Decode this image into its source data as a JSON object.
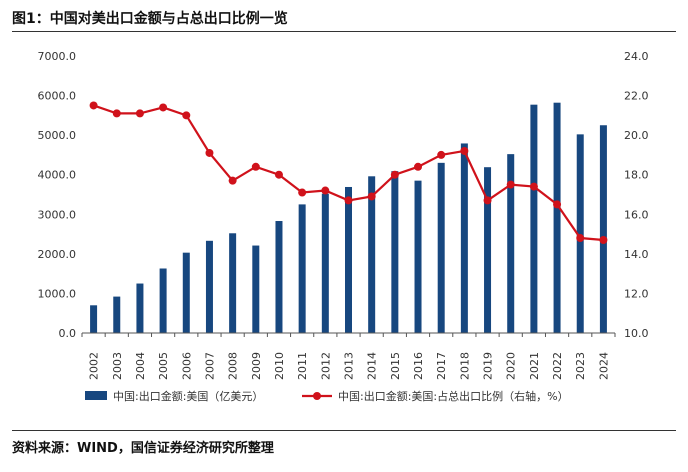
{
  "title": "图1：中国对美出口金额与占总出口比例一览",
  "source": "资料来源：WIND，国信证券经济研究所整理",
  "chart_data": {
    "type": "bar+line",
    "categories": [
      "2002",
      "2003",
      "2004",
      "2005",
      "2006",
      "2007",
      "2008",
      "2009",
      "2010",
      "2011",
      "2012",
      "2013",
      "2014",
      "2015",
      "2016",
      "2017",
      "2018",
      "2019",
      "2020",
      "2021",
      "2022",
      "2023",
      "2024"
    ],
    "series": [
      {
        "name": "中国:出口金额:美国（亿美元）",
        "type": "bar",
        "axis": "left",
        "color": "#17477f",
        "values": [
          700,
          920,
          1250,
          1630,
          2030,
          2330,
          2520,
          2210,
          2830,
          3250,
          3520,
          3690,
          3960,
          4090,
          3850,
          4300,
          4790,
          4190,
          4520,
          5770,
          5820,
          5020,
          5250
        ]
      },
      {
        "name": "中国:出口金额:美国:占总出口比例（右轴，%）",
        "type": "line",
        "axis": "right",
        "color": "#d0121b",
        "values": [
          21.5,
          21.1,
          21.1,
          21.4,
          21.0,
          19.1,
          17.7,
          18.4,
          18.0,
          17.1,
          17.2,
          16.7,
          16.9,
          18.0,
          18.4,
          19.0,
          19.2,
          16.7,
          17.5,
          17.4,
          16.5,
          14.8,
          14.7
        ]
      }
    ],
    "y_left": {
      "min": 0,
      "max": 7000,
      "step": 1000,
      "tick_labels": [
        "0.0",
        "1000.0",
        "2000.0",
        "3000.0",
        "4000.0",
        "5000.0",
        "6000.0",
        "7000.0"
      ]
    },
    "y_right": {
      "min": 10,
      "max": 24,
      "step": 2,
      "tick_labels": [
        "10.0",
        "12.0",
        "14.0",
        "16.0",
        "18.0",
        "20.0",
        "22.0",
        "24.0"
      ]
    },
    "grid": false,
    "legend_position": "bottom"
  }
}
